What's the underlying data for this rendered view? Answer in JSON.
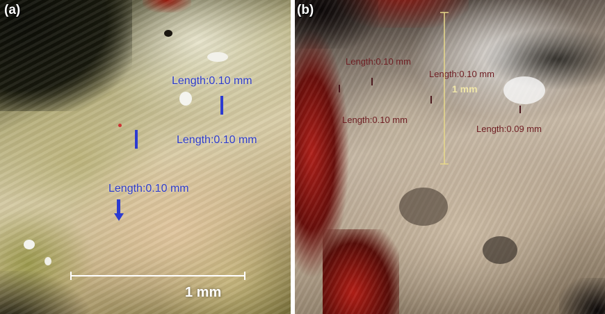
{
  "panels": [
    {
      "label": "(a)",
      "measurements": [
        "Length:0.10 mm",
        "Length:0.10 mm",
        "Length:0.10 mm"
      ],
      "scale_bar_label": "1 mm",
      "annotation_color": "#2d3bc9"
    },
    {
      "label": "(b)",
      "measurements": [
        "Length:0.10 mm",
        "Length:0.10 mm",
        "Length:0.10 mm",
        "Length:0.09 mm"
      ],
      "scale_bar_label": "1 mm",
      "annotation_color": "#6e1d22",
      "scale_bar_color": "#e8d98a"
    }
  ]
}
